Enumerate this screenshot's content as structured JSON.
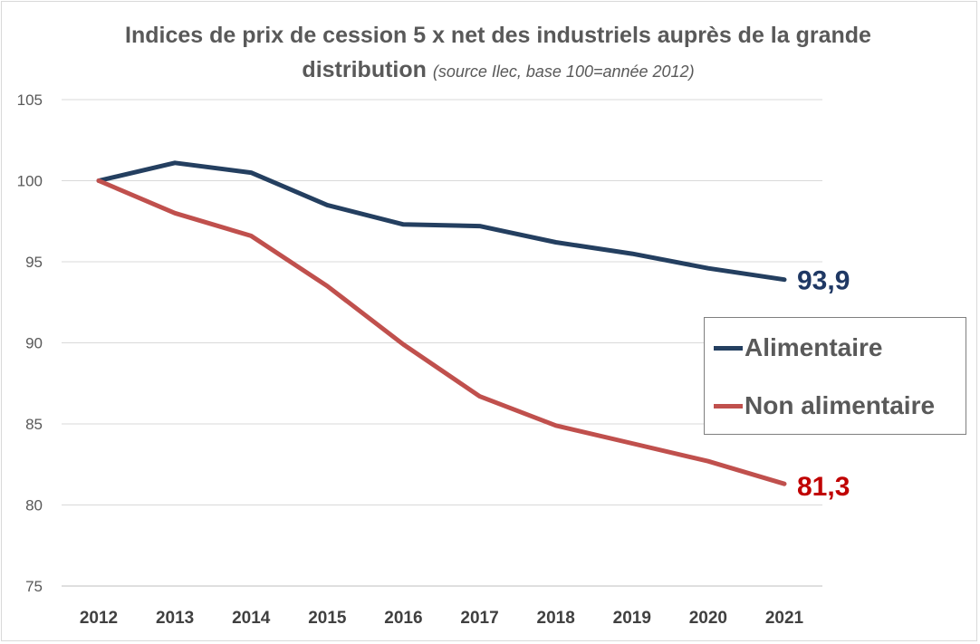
{
  "title": {
    "main_line1": "Indices de prix de cession 5 x net des industriels auprès de la grande",
    "main_line2": "distribution",
    "subtitle": "(source Ilec, base 100=année 2012)"
  },
  "chart_data": {
    "type": "line",
    "x": [
      "2012",
      "2013",
      "2014",
      "2015",
      "2016",
      "2017",
      "2018",
      "2019",
      "2020",
      "2021"
    ],
    "ylim": [
      75,
      105
    ],
    "yticks": [
      "105",
      "100",
      "95",
      "90",
      "85",
      "80",
      "75"
    ],
    "grid": true,
    "legend_position": "right",
    "series": [
      {
        "name": "Alimentaire",
        "color": "#243F60",
        "values": [
          100,
          101.1,
          100.5,
          98.5,
          97.3,
          97.2,
          96.2,
          95.5,
          94.6,
          93.9
        ],
        "end_label": "93,9",
        "end_label_color": "#1F3864"
      },
      {
        "name": "Non alimentaire",
        "color": "#C0504D",
        "values": [
          100,
          98.0,
          96.6,
          93.5,
          89.9,
          86.7,
          84.9,
          83.8,
          82.7,
          81.3
        ],
        "end_label": "81,3",
        "end_label_color": "#C00000"
      }
    ]
  }
}
